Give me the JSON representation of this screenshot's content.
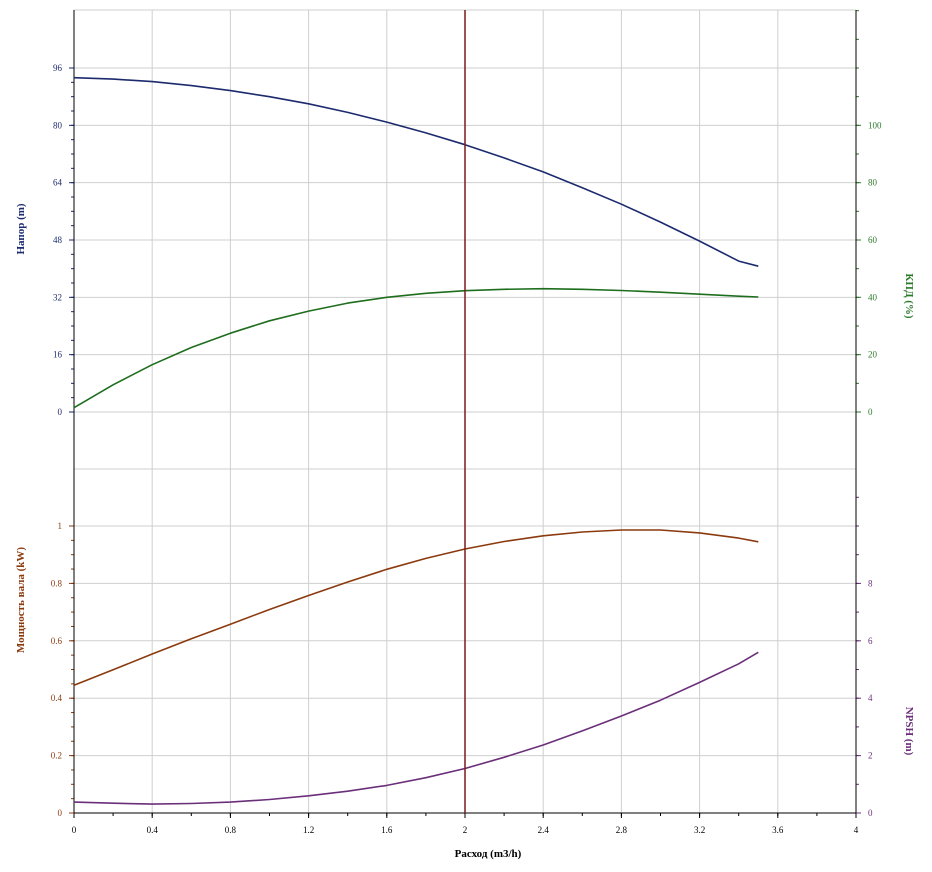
{
  "chart_data": {
    "type": "line",
    "x_axis": {
      "label": "Расход (m3/h)",
      "range": [
        0,
        4
      ],
      "ticks": [
        "0",
        "0.4",
        "0.8",
        "1.2",
        "1.6",
        "2",
        "2.4",
        "2.8",
        "3.2",
        "3.6",
        "4"
      ]
    },
    "operating_point_x": 2,
    "grid": true,
    "panels": [
      {
        "name": "top",
        "left_axis": {
          "label": "Напор (m)",
          "range": [
            0,
            96
          ],
          "ticks": [
            "0",
            "16",
            "32",
            "48",
            "64",
            "80",
            "96"
          ],
          "color": "#1c2a6e"
        },
        "right_axis": {
          "label": "КПД (%)",
          "range": [
            0,
            120
          ],
          "ticks": [
            "0",
            "20",
            "40",
            "60",
            "80",
            "100"
          ],
          "color": "#2c7a2c"
        },
        "series": [
          {
            "axis": "left",
            "color": "#1c2a6e",
            "x": [
              0,
              0.2,
              0.4,
              0.6,
              0.8,
              1.0,
              1.2,
              1.4,
              1.6,
              1.8,
              2.0,
              2.2,
              2.4,
              2.6,
              2.8,
              3.0,
              3.2,
              3.4,
              3.5
            ],
            "y": [
              93.3,
              92.9,
              92.2,
              91.1,
              89.7,
              88.0,
              86.0,
              83.6,
              80.9,
              77.9,
              74.6,
              70.9,
              67.0,
              62.6,
              58.0,
              53.0,
              47.7,
              42.1,
              40.7
            ]
          },
          {
            "axis": "right",
            "color": "#1e6e1e",
            "x": [
              0,
              0.2,
              0.4,
              0.6,
              0.8,
              1.0,
              1.2,
              1.4,
              1.6,
              1.8,
              2.0,
              2.2,
              2.4,
              2.6,
              2.8,
              3.0,
              3.2,
              3.4,
              3.5
            ],
            "y": [
              1.5,
              9.5,
              16.5,
              22.5,
              27.5,
              31.8,
              35.2,
              38.0,
              40.0,
              41.4,
              42.3,
              42.8,
              43.0,
              42.8,
              42.4,
              41.8,
              41.1,
              40.4,
              40.1
            ]
          }
        ]
      },
      {
        "name": "bottom",
        "left_axis": {
          "label": "Мощность вала (kW)",
          "range": [
            0,
            1.2
          ],
          "ticks": [
            "0",
            "0.2",
            "0.4",
            "0.6",
            "0.8",
            "1"
          ],
          "color": "#8b3a0e"
        },
        "right_axis": {
          "label": "NPSH (m)",
          "range": [
            0,
            12
          ],
          "ticks": [
            "0",
            "2",
            "4",
            "6",
            "8"
          ],
          "color": "#6b2f7a"
        },
        "series": [
          {
            "axis": "left",
            "color": "#8b3a0e",
            "x": [
              0,
              0.2,
              0.4,
              0.6,
              0.8,
              1.0,
              1.2,
              1.4,
              1.6,
              1.8,
              2.0,
              2.2,
              2.4,
              2.6,
              2.8,
              3.0,
              3.2,
              3.4,
              3.5
            ],
            "y": [
              0.445,
              0.499,
              0.554,
              0.607,
              0.658,
              0.709,
              0.758,
              0.805,
              0.849,
              0.887,
              0.92,
              0.946,
              0.966,
              0.979,
              0.986,
              0.986,
              0.976,
              0.958,
              0.945
            ]
          },
          {
            "axis": "right",
            "color": "#6b2f7a",
            "x": [
              0,
              0.2,
              0.4,
              0.6,
              0.8,
              1.0,
              1.2,
              1.4,
              1.6,
              1.8,
              2.0,
              2.2,
              2.4,
              2.6,
              2.8,
              3.0,
              3.2,
              3.4,
              3.5
            ],
            "y": [
              0.38,
              0.34,
              0.31,
              0.33,
              0.38,
              0.47,
              0.6,
              0.76,
              0.96,
              1.23,
              1.55,
              1.94,
              2.37,
              2.86,
              3.38,
              3.93,
              4.55,
              5.2,
              5.6
            ]
          }
        ]
      }
    ]
  }
}
